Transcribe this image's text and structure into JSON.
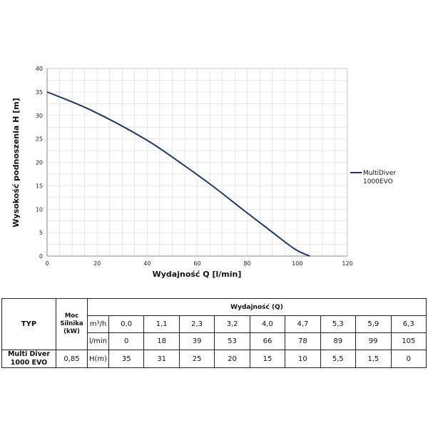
{
  "chart_data": {
    "type": "line",
    "xlabel": "Wydajność Q [l/min]",
    "ylabel": "Wysokość podnoszenia H [m]",
    "xlim": [
      0,
      120
    ],
    "ylim": [
      0,
      40
    ],
    "x_ticks": [
      0,
      20,
      40,
      60,
      80,
      100,
      120
    ],
    "y_ticks": [
      0,
      5,
      10,
      15,
      20,
      25,
      30,
      35,
      40
    ],
    "grid": true,
    "legend_position": "right",
    "series": [
      {
        "name": "MultiDiver 1000EVO",
        "color": "#1f3864",
        "x": [
          0,
          18,
          39,
          53,
          66,
          78,
          89,
          99,
          105
        ],
        "y": [
          35,
          31,
          25,
          20,
          15,
          10,
          5.5,
          1.5,
          0
        ]
      }
    ]
  },
  "table": {
    "typ_label": "TYP",
    "moc_label_1": "Moc",
    "moc_label_2": "Silnika",
    "moc_label_3": "(kW)",
    "wydajnosc_label": "Wydajność (Q)",
    "m3h_label": "m³/h",
    "lmin_label": "l/min",
    "hm_label": "H(m)",
    "model_line1": "Multi Diver",
    "model_line2": "1000 EVO",
    "power": "0,85",
    "m3h_values": [
      "0,0",
      "1,1",
      "2,3",
      "3,2",
      "4,0",
      "4,7",
      "5,3",
      "5,9",
      "6,3"
    ],
    "lmin_values": [
      "0",
      "18",
      "39",
      "53",
      "66",
      "78",
      "89",
      "99",
      "105"
    ],
    "h_values": [
      "35",
      "31",
      "25",
      "20",
      "15",
      "10",
      "5,5",
      "1,5",
      "0"
    ]
  }
}
